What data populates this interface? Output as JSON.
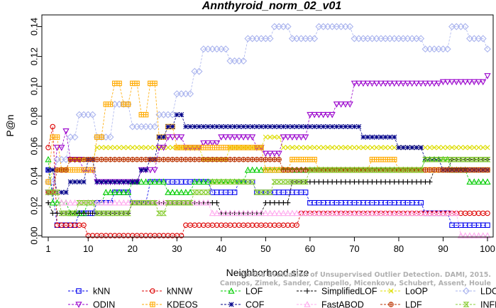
{
  "chart_data": {
    "type": "line",
    "title": "Annthyroid_norm_02_v01",
    "xlabel": "Neighborhood size",
    "ylabel": "P@n",
    "xlim": [
      1,
      100
    ],
    "ylim": [
      0,
      0.145
    ],
    "xticks": [
      1,
      10,
      20,
      30,
      40,
      50,
      60,
      70,
      80,
      90,
      100
    ],
    "yticks": [
      0.0,
      0.02,
      0.04,
      0.06,
      0.08,
      0.1,
      0.12,
      0.14
    ],
    "ytick_labels": [
      "0.00",
      "0.02",
      "0.04",
      "0.06",
      "0.08",
      "0.10",
      "0.12",
      "0.14"
    ],
    "grid": false,
    "legend_position": "bottom",
    "watermark": [
      "Campos, Zimek, Sander, Campello, Micenkova, Schubert, Assent, Houle",
      "On the Evaluation of Unsupervised Outlier Detection. DAMI, 2015."
    ],
    "series": [
      {
        "name": "kNN",
        "color": "#0000ee",
        "marker": "square",
        "points": [
          [
            1,
            0.044
          ],
          [
            2,
            0.029
          ],
          [
            3,
            0.007
          ],
          [
            8,
            0.015
          ],
          [
            12,
            0.022
          ],
          [
            16,
            0.029
          ],
          [
            20,
            0.022
          ],
          [
            24,
            0.036
          ],
          [
            38,
            0.029
          ],
          [
            44,
            0.036
          ],
          [
            48,
            0.029
          ],
          [
            60,
            0.022
          ],
          [
            86,
            0.015
          ],
          [
            92,
            0.007
          ],
          [
            100,
            0.007
          ]
        ]
      },
      {
        "name": "kNNW",
        "color": "#dd0000",
        "marker": "circle",
        "points": [
          [
            1,
            0.059
          ],
          [
            2,
            0.073
          ],
          [
            3,
            0.007
          ],
          [
            10,
            0.0
          ],
          [
            30,
            0.0
          ],
          [
            32,
            0.007
          ],
          [
            48,
            0.007
          ],
          [
            58,
            0.015
          ],
          [
            100,
            0.015
          ]
        ]
      },
      {
        "name": "LOF",
        "color": "#00cc00",
        "marker": "triangle-up",
        "points": [
          [
            1,
            0.051
          ],
          [
            2,
            0.022
          ],
          [
            6,
            0.015
          ],
          [
            10,
            0.022
          ],
          [
            14,
            0.029
          ],
          [
            20,
            0.036
          ],
          [
            28,
            0.029
          ],
          [
            34,
            0.036
          ],
          [
            46,
            0.044
          ],
          [
            60,
            0.044
          ],
          [
            70,
            0.044
          ],
          [
            86,
            0.051
          ],
          [
            92,
            0.044
          ],
          [
            96,
            0.036
          ],
          [
            100,
            0.036
          ]
        ]
      },
      {
        "name": "SimplifiedLOF",
        "color": "#000000",
        "marker": "plus",
        "points": [
          [
            1,
            0.022
          ],
          [
            2,
            0.015
          ],
          [
            8,
            0.015
          ],
          [
            20,
            0.022
          ],
          [
            32,
            0.022
          ],
          [
            40,
            0.015
          ],
          [
            49,
            0.015
          ],
          [
            50,
            0.022
          ],
          [
            54,
            0.022
          ],
          [
            56,
            0.036
          ],
          [
            62,
            0.036
          ],
          [
            86,
            0.036
          ],
          [
            88,
            0.044
          ],
          [
            92,
            0.051
          ],
          [
            100,
            0.051
          ]
        ]
      },
      {
        "name": "LoOP",
        "color": "#dddd00",
        "marker": "x",
        "points": [
          [
            1,
            0.029
          ],
          [
            2,
            0.044
          ],
          [
            6,
            0.051
          ],
          [
            12,
            0.059
          ],
          [
            20,
            0.059
          ],
          [
            30,
            0.059
          ],
          [
            36,
            0.051
          ],
          [
            42,
            0.059
          ],
          [
            50,
            0.066
          ],
          [
            54,
            0.059
          ],
          [
            86,
            0.059
          ],
          [
            100,
            0.059
          ]
        ]
      },
      {
        "name": "LDOF",
        "color": "#aab4ee",
        "marker": "diamond",
        "points": [
          [
            1,
            0.036
          ],
          [
            3,
            0.051
          ],
          [
            6,
            0.066
          ],
          [
            8,
            0.081
          ],
          [
            12,
            0.066
          ],
          [
            16,
            0.088
          ],
          [
            20,
            0.073
          ],
          [
            26,
            0.081
          ],
          [
            30,
            0.095
          ],
          [
            34,
            0.11
          ],
          [
            36,
            0.125
          ],
          [
            42,
            0.117
          ],
          [
            46,
            0.132
          ],
          [
            52,
            0.14
          ],
          [
            56,
            0.132
          ],
          [
            62,
            0.14
          ],
          [
            70,
            0.132
          ],
          [
            86,
            0.125
          ],
          [
            92,
            0.14
          ],
          [
            96,
            0.132
          ],
          [
            100,
            0.125
          ]
        ]
      },
      {
        "name": "ODIN",
        "color": "#9900cc",
        "marker": "triangle-down",
        "points": [
          [
            1,
            0.029
          ],
          [
            3,
            0.059
          ],
          [
            5,
            0.07
          ],
          [
            6,
            0.051
          ],
          [
            9,
            0.044
          ],
          [
            12,
            0.036
          ],
          [
            18,
            0.036
          ],
          [
            22,
            0.044
          ],
          [
            26,
            0.059
          ],
          [
            28,
            0.066
          ],
          [
            32,
            0.059
          ],
          [
            36,
            0.062
          ],
          [
            40,
            0.066
          ],
          [
            44,
            0.066
          ],
          [
            48,
            0.059
          ],
          [
            50,
            0.055
          ],
          [
            54,
            0.066
          ],
          [
            60,
            0.081
          ],
          [
            66,
            0.088
          ],
          [
            70,
            0.102
          ],
          [
            80,
            0.102
          ],
          [
            90,
            0.103
          ],
          [
            100,
            0.107
          ]
        ]
      },
      {
        "name": "KDEOS",
        "color": "#ffaa00",
        "marker": "square-cross",
        "points": [
          [
            1,
            0.036
          ],
          [
            2,
            0.066
          ],
          [
            4,
            0.044
          ],
          [
            8,
            0.044
          ],
          [
            12,
            0.066
          ],
          [
            14,
            0.088
          ],
          [
            16,
            0.102
          ],
          [
            18,
            0.088
          ],
          [
            20,
            0.102
          ],
          [
            22,
            0.081
          ],
          [
            24,
            0.102
          ],
          [
            26,
            0.066
          ],
          [
            28,
            0.073
          ],
          [
            30,
            0.059
          ],
          [
            34,
            0.059
          ],
          [
            40,
            0.059
          ],
          [
            46,
            0.059
          ],
          [
            50,
            0.044
          ],
          [
            56,
            0.051
          ],
          [
            62,
            0.044
          ],
          [
            74,
            0.051
          ],
          [
            80,
            0.044
          ],
          [
            100,
            0.044
          ]
        ]
      },
      {
        "name": "COF",
        "color": "#000088",
        "marker": "asterisk",
        "points": [
          [
            1,
            0.044
          ],
          [
            3,
            0.029
          ],
          [
            6,
            0.036
          ],
          [
            10,
            0.051
          ],
          [
            12,
            0.036
          ],
          [
            18,
            0.036
          ],
          [
            22,
            0.044
          ],
          [
            24,
            0.051
          ],
          [
            26,
            0.066
          ],
          [
            28,
            0.073
          ],
          [
            30,
            0.081
          ],
          [
            32,
            0.073
          ],
          [
            50,
            0.073
          ],
          [
            70,
            0.073
          ],
          [
            72,
            0.066
          ],
          [
            76,
            0.066
          ],
          [
            80,
            0.059
          ],
          [
            84,
            0.059
          ],
          [
            86,
            0.051
          ],
          [
            90,
            0.044
          ],
          [
            100,
            0.044
          ]
        ]
      },
      {
        "name": "FastABOD",
        "color": "#ffaaee",
        "marker": "triangle-outline",
        "points": [
          [
            1,
            0.029
          ],
          [
            4,
            0.022
          ],
          [
            10,
            0.022
          ],
          [
            20,
            0.022
          ],
          [
            34,
            0.022
          ],
          [
            38,
            0.015
          ],
          [
            50,
            0.015
          ],
          [
            70,
            0.015
          ],
          [
            86,
            0.015
          ],
          [
            92,
            0.015
          ],
          [
            94,
            0.0
          ],
          [
            100,
            0.0
          ]
        ]
      },
      {
        "name": "LDF",
        "color": "#bb3300",
        "marker": "circle-plus",
        "points": [
          [
            1,
            0.029
          ],
          [
            3,
            0.044
          ],
          [
            6,
            0.051
          ],
          [
            10,
            0.051
          ],
          [
            20,
            0.051
          ],
          [
            30,
            0.051
          ],
          [
            40,
            0.051
          ],
          [
            50,
            0.051
          ],
          [
            54,
            0.044
          ],
          [
            60,
            0.044
          ],
          [
            70,
            0.044
          ],
          [
            80,
            0.044
          ],
          [
            90,
            0.044
          ],
          [
            100,
            0.044
          ]
        ]
      },
      {
        "name": "INFLO",
        "color": "#88cc33",
        "marker": "hourglass",
        "points": [
          [
            1,
            0.029
          ],
          [
            4,
            0.015
          ],
          [
            8,
            0.022
          ],
          [
            12,
            0.015
          ],
          [
            16,
            0.015
          ],
          [
            20,
            0.022
          ],
          [
            26,
            0.015
          ],
          [
            28,
            0.022
          ],
          [
            34,
            0.029
          ],
          [
            38,
            0.036
          ],
          [
            44,
            0.036
          ],
          [
            48,
            0.029
          ],
          [
            52,
            0.036
          ],
          [
            60,
            0.044
          ],
          [
            70,
            0.044
          ],
          [
            80,
            0.044
          ],
          [
            86,
            0.051
          ],
          [
            92,
            0.051
          ],
          [
            100,
            0.051
          ]
        ]
      }
    ]
  }
}
